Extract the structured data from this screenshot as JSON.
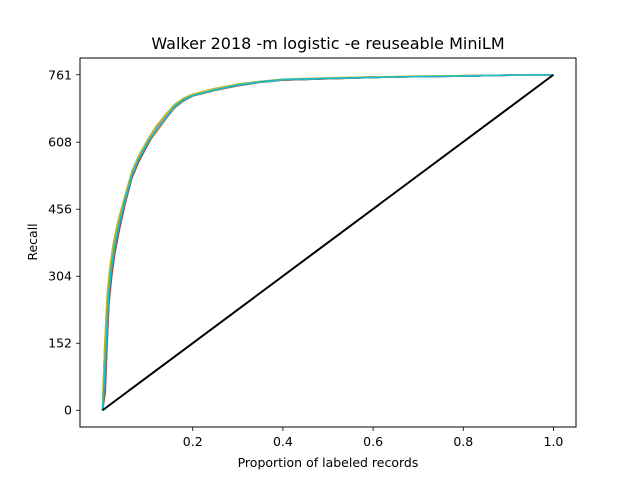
{
  "chart_data": {
    "type": "line",
    "title": "Walker 2018 -m logistic -e reuseable MiniLM",
    "xlabel": "Proportion of labeled records",
    "ylabel": "Recall",
    "xlim": [
      -0.05,
      1.05
    ],
    "ylim": [
      -38,
      799
    ],
    "x_ticks": [
      {
        "value": 0.2,
        "label": "0.2"
      },
      {
        "value": 0.4,
        "label": "0.4"
      },
      {
        "value": 0.6,
        "label": "0.6"
      },
      {
        "value": 0.8,
        "label": "0.8"
      },
      {
        "value": 1.0,
        "label": "1.0"
      }
    ],
    "y_ticks": [
      {
        "value": 0,
        "label": "0"
      },
      {
        "value": 152,
        "label": "152"
      },
      {
        "value": 304,
        "label": "304"
      },
      {
        "value": 456,
        "label": "456"
      },
      {
        "value": 608,
        "label": "608"
      },
      {
        "value": 761,
        "label": "761"
      }
    ],
    "grid": false,
    "legend": "none",
    "series": [
      {
        "color": "#1f77b4",
        "x": [
          0,
          0.004,
          0.008,
          0.012,
          0.018,
          0.025,
          0.035,
          0.05,
          0.065,
          0.08,
          0.1,
          0.12,
          0.14,
          0.16,
          0.18,
          0.2,
          0.25,
          0.3,
          0.35,
          0.4,
          0.5,
          0.6,
          0.7,
          0.8,
          0.9,
          1.0
        ],
        "y": [
          0,
          80,
          180,
          260,
          320,
          370,
          420,
          480,
          535,
          570,
          610,
          640,
          665,
          690,
          705,
          715,
          728,
          738,
          745,
          750,
          753,
          755,
          757,
          758,
          760,
          761
        ]
      },
      {
        "color": "#ff7f0e",
        "x": [
          0,
          0.005,
          0.009,
          0.013,
          0.019,
          0.026,
          0.036,
          0.05,
          0.065,
          0.08,
          0.1,
          0.12,
          0.14,
          0.16,
          0.18,
          0.2,
          0.25,
          0.3,
          0.35,
          0.4,
          0.5,
          0.6,
          0.7,
          0.8,
          0.9,
          1.0
        ],
        "y": [
          0,
          60,
          165,
          250,
          312,
          362,
          415,
          475,
          530,
          568,
          606,
          632,
          660,
          686,
          702,
          713,
          726,
          736,
          744,
          749,
          752,
          755,
          757,
          758,
          760,
          761
        ]
      },
      {
        "color": "#2ca02c",
        "x": [
          0,
          0.003,
          0.007,
          0.011,
          0.017,
          0.024,
          0.034,
          0.05,
          0.065,
          0.08,
          0.1,
          0.12,
          0.14,
          0.16,
          0.18,
          0.2,
          0.25,
          0.3,
          0.35,
          0.4,
          0.5,
          0.6,
          0.7,
          0.8,
          0.9,
          1.0
        ],
        "y": [
          0,
          95,
          190,
          268,
          326,
          376,
          425,
          485,
          540,
          575,
          612,
          645,
          670,
          693,
          707,
          716,
          729,
          739,
          746,
          750,
          753,
          756,
          757,
          759,
          760,
          761
        ]
      },
      {
        "color": "#d62728",
        "x": [
          0,
          0.005,
          0.01,
          0.014,
          0.02,
          0.027,
          0.037,
          0.05,
          0.065,
          0.08,
          0.1,
          0.12,
          0.14,
          0.16,
          0.18,
          0.2,
          0.25,
          0.3,
          0.35,
          0.4,
          0.5,
          0.6,
          0.7,
          0.8,
          0.9,
          1.0
        ],
        "y": [
          0,
          50,
          155,
          245,
          305,
          358,
          410,
          470,
          528,
          565,
          604,
          636,
          663,
          688,
          703,
          714,
          727,
          737,
          745,
          749,
          752,
          755,
          757,
          758,
          760,
          761
        ]
      },
      {
        "color": "#9467bd",
        "x": [
          0,
          0.004,
          0.008,
          0.012,
          0.018,
          0.025,
          0.035,
          0.05,
          0.065,
          0.08,
          0.1,
          0.12,
          0.14,
          0.16,
          0.18,
          0.2,
          0.25,
          0.3,
          0.35,
          0.4,
          0.5,
          0.6,
          0.7,
          0.8,
          0.9,
          1.0
        ],
        "y": [
          0,
          70,
          172,
          255,
          316,
          366,
          418,
          478,
          533,
          571,
          609,
          638,
          662,
          689,
          704,
          714,
          727,
          737,
          745,
          750,
          753,
          755,
          757,
          758,
          760,
          761
        ]
      },
      {
        "color": "#8c564b",
        "x": [
          0,
          0.006,
          0.01,
          0.014,
          0.02,
          0.027,
          0.037,
          0.05,
          0.065,
          0.08,
          0.1,
          0.12,
          0.14,
          0.16,
          0.18,
          0.2,
          0.25,
          0.3,
          0.35,
          0.4,
          0.5,
          0.6,
          0.7,
          0.8,
          0.9,
          1.0
        ],
        "y": [
          0,
          40,
          150,
          240,
          302,
          355,
          408,
          468,
          526,
          563,
          602,
          640,
          664,
          687,
          703,
          713,
          726,
          736,
          744,
          749,
          752,
          755,
          757,
          758,
          760,
          761
        ]
      },
      {
        "color": "#e377c2",
        "x": [
          0,
          0.004,
          0.008,
          0.012,
          0.018,
          0.025,
          0.035,
          0.05,
          0.065,
          0.08,
          0.1,
          0.12,
          0.14,
          0.16,
          0.18,
          0.2,
          0.25,
          0.3,
          0.35,
          0.4,
          0.5,
          0.6,
          0.7,
          0.8,
          0.9,
          1.0
        ],
        "y": [
          0,
          85,
          185,
          262,
          322,
          372,
          422,
          482,
          537,
          572,
          611,
          642,
          667,
          691,
          706,
          715,
          728,
          738,
          745,
          750,
          753,
          756,
          757,
          759,
          760,
          761
        ]
      },
      {
        "color": "#7f7f7f",
        "x": [
          0,
          0.005,
          0.009,
          0.013,
          0.019,
          0.026,
          0.036,
          0.05,
          0.065,
          0.08,
          0.1,
          0.12,
          0.14,
          0.16,
          0.18,
          0.2,
          0.25,
          0.3,
          0.35,
          0.4,
          0.5,
          0.6,
          0.7,
          0.8,
          0.9,
          1.0
        ],
        "y": [
          0,
          65,
          168,
          252,
          314,
          364,
          416,
          476,
          531,
          569,
          607,
          635,
          661,
          687,
          702,
          713,
          726,
          736,
          744,
          749,
          752,
          755,
          757,
          758,
          760,
          761
        ]
      },
      {
        "color": "#bcbd22",
        "x": [
          0,
          0.003,
          0.007,
          0.011,
          0.017,
          0.024,
          0.034,
          0.05,
          0.065,
          0.08,
          0.1,
          0.12,
          0.14,
          0.16,
          0.18,
          0.2,
          0.25,
          0.3,
          0.35,
          0.4,
          0.5,
          0.6,
          0.7,
          0.8,
          0.9,
          1.0
        ],
        "y": [
          0,
          100,
          195,
          272,
          330,
          380,
          428,
          488,
          542,
          577,
          614,
          646,
          671,
          694,
          708,
          717,
          730,
          740,
          746,
          751,
          754,
          756,
          758,
          759,
          760,
          761
        ]
      },
      {
        "color": "#17becf",
        "x": [
          0,
          0.004,
          0.009,
          0.013,
          0.019,
          0.026,
          0.036,
          0.05,
          0.065,
          0.08,
          0.1,
          0.12,
          0.14,
          0.16,
          0.18,
          0.2,
          0.25,
          0.3,
          0.35,
          0.4,
          0.5,
          0.6,
          0.7,
          0.8,
          0.9,
          1.0
        ],
        "y": [
          0,
          75,
          176,
          258,
          318,
          368,
          419,
          479,
          534,
          570,
          608,
          637,
          663,
          690,
          705,
          714,
          727,
          738,
          745,
          750,
          753,
          755,
          757,
          758,
          760,
          761
        ]
      },
      {
        "color": "#000000",
        "x": [
          0,
          1.0
        ],
        "y": [
          0,
          761
        ]
      }
    ]
  }
}
